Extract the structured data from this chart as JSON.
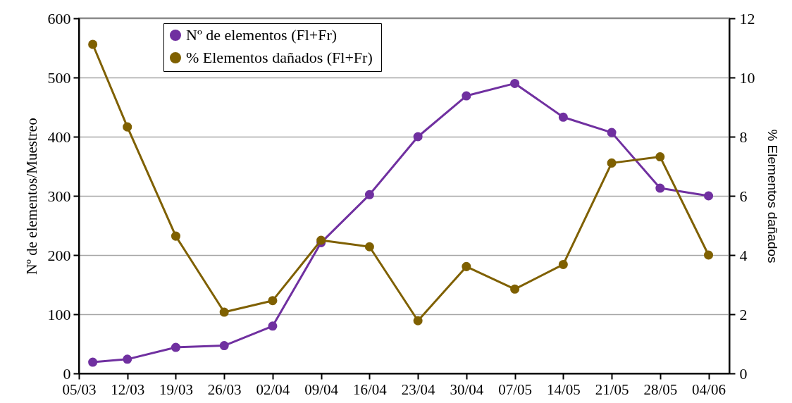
{
  "chart_data": {
    "type": "line",
    "ylabel": "Nº de elementos/Muestreo",
    "y2label": "% Elementos dañados",
    "x": [
      "--03-07",
      "--03-12",
      "--03-19",
      "--03-26",
      "--04-02",
      "--04-09",
      "--04-16",
      "--04-23",
      "--04-30",
      "--05-07",
      "--05-14",
      "--05-21",
      "--05-28",
      "--06-04"
    ],
    "xlim": [
      "--03-05",
      "--06-07"
    ],
    "xticks": [
      {
        "value": "--03-05",
        "label": "05/03"
      },
      {
        "value": "--03-12",
        "label": "12/03"
      },
      {
        "value": "--03-19",
        "label": "19/03"
      },
      {
        "value": "--03-26",
        "label": "26/03"
      },
      {
        "value": "--04-02",
        "label": "02/04"
      },
      {
        "value": "--04-09",
        "label": "09/04"
      },
      {
        "value": "--04-16",
        "label": "16/04"
      },
      {
        "value": "--04-23",
        "label": "23/04"
      },
      {
        "value": "--04-30",
        "label": "30/04"
      },
      {
        "value": "--05-07",
        "label": "07/05"
      },
      {
        "value": "--05-14",
        "label": "14/05"
      },
      {
        "value": "--05-21",
        "label": "21/05"
      },
      {
        "value": "--05-28",
        "label": "28/05"
      },
      {
        "value": "--06-04",
        "label": "04/06"
      }
    ],
    "ylim": [
      0,
      600
    ],
    "yticks": [
      0,
      100,
      200,
      300,
      400,
      500,
      600
    ],
    "y2lim": [
      0,
      12
    ],
    "y2ticks": [
      0,
      2,
      4,
      6,
      8,
      10,
      12
    ],
    "series": [
      {
        "name": "Nº de elementos (Fl+Fr)",
        "color": "#7030a0",
        "values": [
          19,
          24,
          44,
          47,
          80,
          221,
          302,
          400,
          469,
          490,
          433,
          407,
          313,
          300
        ]
      },
      {
        "name": "%  Elementos dañados (Fl+Fr)",
        "color": "#7f6000",
        "axis": "y2",
        "values": [
          11.12,
          8.33,
          4.64,
          2.07,
          2.46,
          4.5,
          4.28,
          1.78,
          3.61,
          2.85,
          3.68,
          7.11,
          7.32,
          4.0
        ]
      }
    ],
    "grid": "y",
    "legend": "top left",
    "marker": "circle",
    "line_style": "solid"
  }
}
